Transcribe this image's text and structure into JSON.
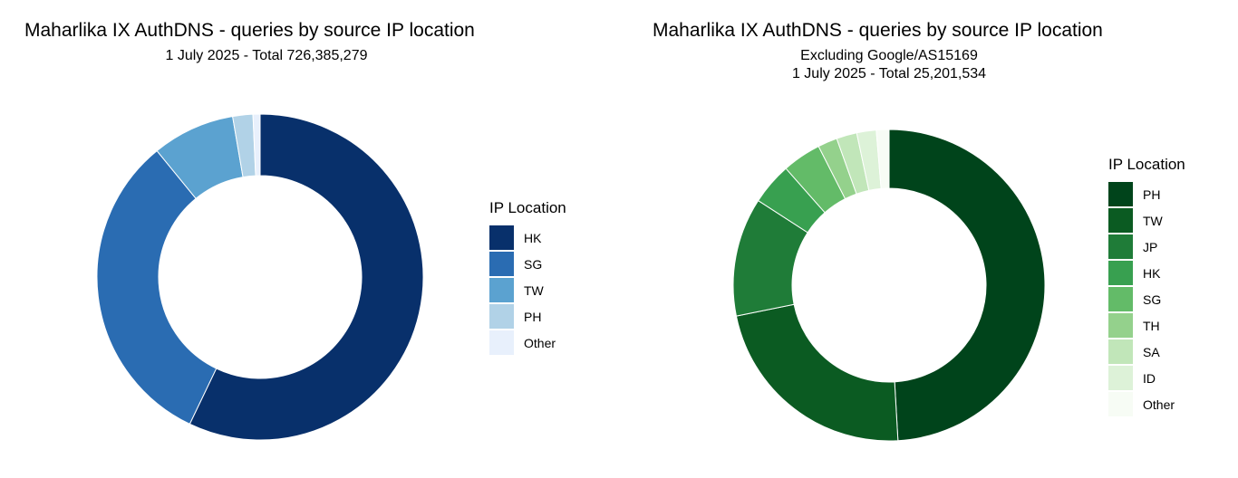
{
  "chart_data": [
    {
      "type": "pie",
      "title": "Maharlika IX AuthDNS - queries by source IP location",
      "subtitle": [
        "1 July 2025 - Total 726,385,279"
      ],
      "legend_title": "IP Location",
      "legend_position": "right",
      "categories": [
        "HK",
        "SG",
        "TW",
        "PH",
        "Other"
      ],
      "values": [
        57.1,
        32.0,
        8.2,
        2.0,
        0.7
      ],
      "value_unit": "percent (estimated)",
      "colors": [
        "#08306b",
        "#2a6cb2",
        "#5ba2d0",
        "#b1d2e7",
        "#e8f0fc"
      ]
    },
    {
      "type": "pie",
      "title": "Maharlika IX AuthDNS - queries by source IP location",
      "subtitle": [
        "Excluding Google/AS15169",
        "1 July 2025 - Total 25,201,534"
      ],
      "legend_title": "IP Location",
      "legend_position": "right",
      "categories": [
        "PH",
        "TW",
        "JP",
        "HK",
        "SG",
        "TH",
        "SA",
        "ID",
        "Other"
      ],
      "values": [
        48.6,
        22.5,
        12.2,
        4.3,
        4.0,
        2.0,
        2.1,
        2.0,
        1.3
      ],
      "value_unit": "percent (estimated)",
      "colors": [
        "#00441b",
        "#0b5b22",
        "#1f7c38",
        "#38a050",
        "#63bb68",
        "#94d18c",
        "#c1e6b9",
        "#ddf2d8",
        "#f7fcf5"
      ]
    }
  ]
}
